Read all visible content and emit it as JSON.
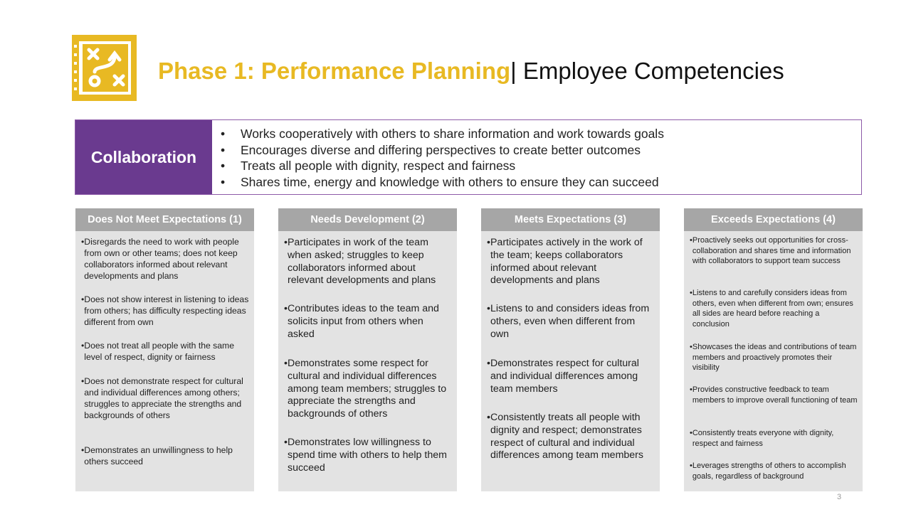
{
  "header": {
    "phase_title": "Phase 1: Performance Planning",
    "separator": "|",
    "subtitle": "Employee Competencies",
    "logo_icon": "strategy-plan-icon",
    "accent_color": "#e8b923"
  },
  "competency": {
    "label": "Collaboration",
    "label_bg": "#6a3a8f",
    "bullets": [
      "Works cooperatively with others to share information and work towards goals",
      "Encourages diverse and differing perspectives to create better outcomes",
      "Treats all people with dignity, respect and fairness",
      "Shares time, energy and knowledge with others to ensure they can succeed"
    ]
  },
  "columns": [
    {
      "header": "Does Not Meet Expectations (1)",
      "items": [
        "Disregards the need to work with people from own or other teams; does not keep collaborators informed about relevant developments and plans",
        "Does not show interest in listening to ideas from others; has difficulty respecting ideas different from own",
        "Does not treat all people with the same level of respect, dignity or fairness",
        "Does not demonstrate respect for cultural and individual differences among others; struggles to appreciate the strengths and backgrounds of others",
        "Demonstrates an unwillingness to help others succeed"
      ]
    },
    {
      "header": "Needs Development (2)",
      "items": [
        "Participates in work of the team when asked; struggles to keep collaborators informed about relevant developments and plans",
        "Contributes ideas to the team and solicits input from others when asked",
        "Demonstrates some respect for cultural and individual differences among team members; struggles to appreciate the strengths and backgrounds of others",
        "Demonstrates low willingness to spend time with others to help them succeed"
      ]
    },
    {
      "header": "Meets Expectations (3)",
      "items": [
        "Participates actively in the work of the team; keeps collaborators informed about relevant developments and plans",
        "Listens to and considers ideas from others, even when different from own",
        "Demonstrates respect for cultural and individual differences among team members",
        "Consistently treats all people with dignity and respect; demonstrates respect of cultural and individual differences among team members"
      ]
    },
    {
      "header": "Exceeds Expectations (4)",
      "items": [
        "Proactively seeks out opportunities for cross-collaboration and shares time and information with collaborators to support team success",
        "Listens to and carefully considers ideas from others, even when different from own; ensures all sides are heard before reaching a conclusion",
        "Showcases the ideas and contributions of team members and proactively promotes their visibility",
        "Provides constructive feedback to team members to improve overall functioning of team",
        "Consistently treats everyone with dignity, respect and fairness",
        "Leverages strengths of others to accomplish goals, regardless of background"
      ]
    }
  ],
  "page_number": "3"
}
